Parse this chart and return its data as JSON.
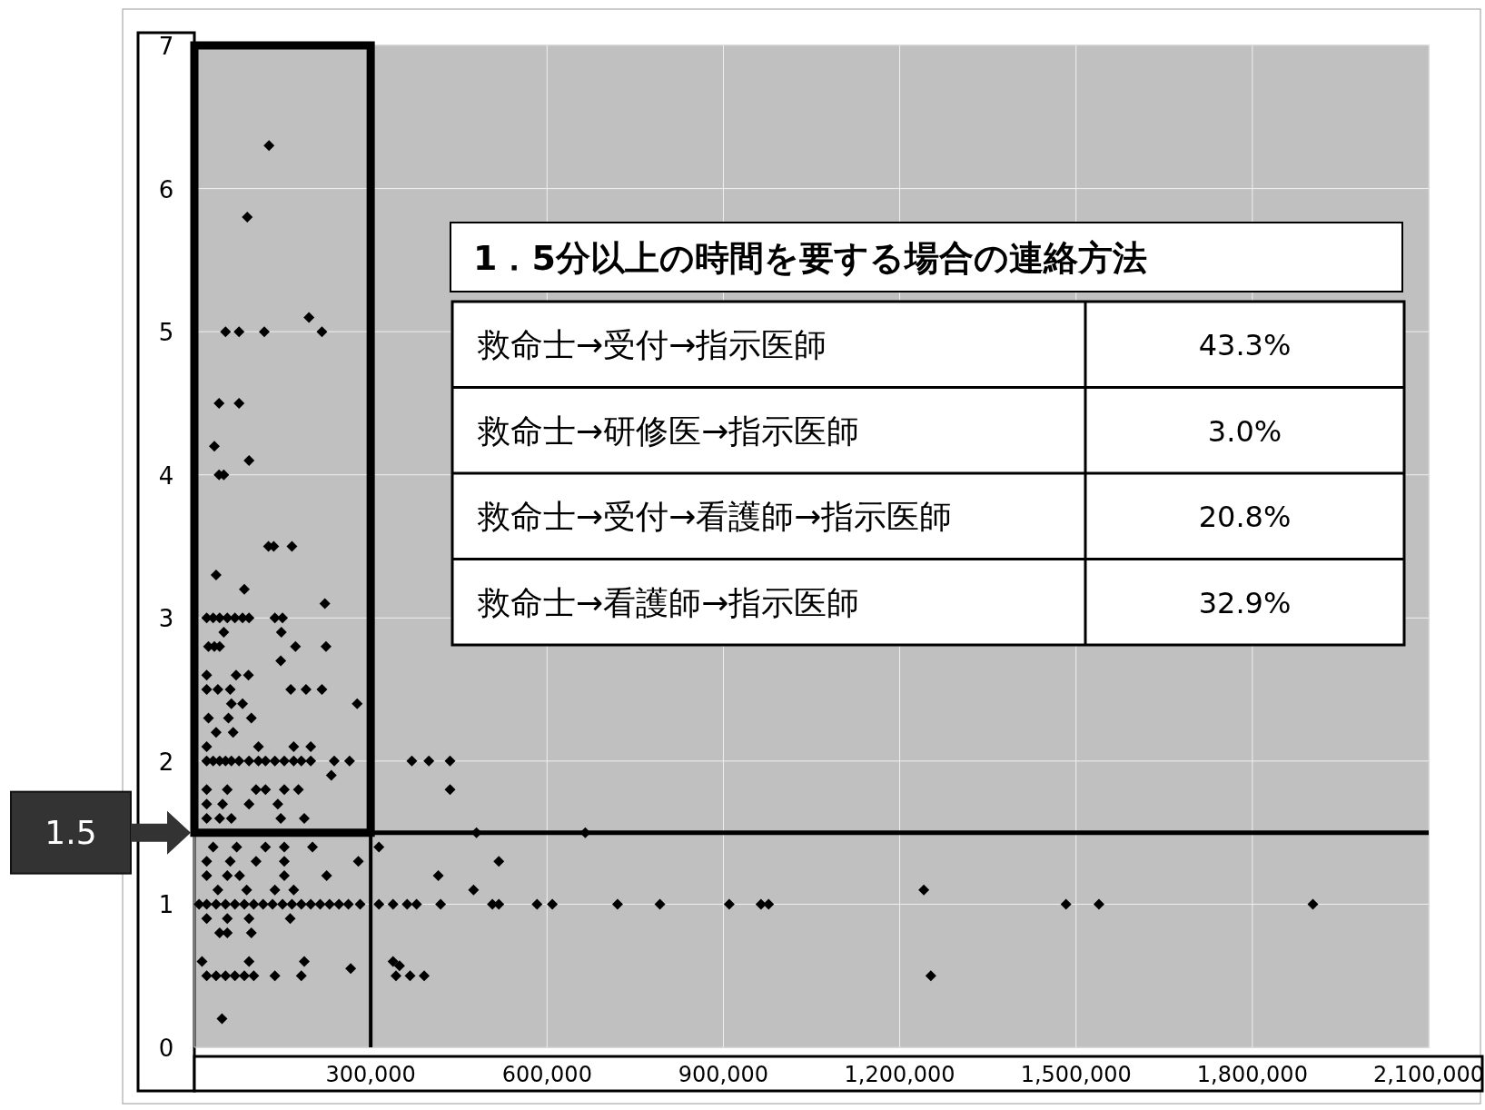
{
  "chart_data": [
    {
      "type": "scatter",
      "marker": "diamond",
      "grid": true,
      "xlim": [
        0,
        2100000
      ],
      "xticks": [
        {
          "value": 0,
          "label": null
        },
        {
          "value": 300000,
          "label": "300,000"
        },
        {
          "value": 600000,
          "label": "600,000"
        },
        {
          "value": 900000,
          "label": "900,000"
        },
        {
          "value": 1200000,
          "label": "1,200,000"
        },
        {
          "value": 1500000,
          "label": "1,500,000"
        },
        {
          "value": 1800000,
          "label": "1,800,000"
        },
        {
          "value": 2100000,
          "label": "2,100,000"
        }
      ],
      "ylim": [
        0,
        7
      ],
      "yticks": [
        0,
        1,
        2,
        3,
        4,
        5,
        6,
        7
      ],
      "ref_lines": [
        {
          "axis": "y",
          "value": 1.5,
          "label": "1.5",
          "color": "#000000"
        }
      ],
      "series": [
        {
          "color": "#000000",
          "x": [
            127000,
            90000,
            195000,
            53000,
            76000,
            119000,
            217000,
            42000,
            76000,
            34000,
            93000,
            42000,
            50000,
            126000,
            135000,
            166000,
            37000,
            85000,
            222000,
            21000,
            32000,
            43000,
            56000,
            69000,
            82000,
            93000,
            137000,
            150000,
            50000,
            148000,
            24000,
            34000,
            43000,
            172000,
            224000,
            147000,
            21000,
            71000,
            92000,
            21000,
            40000,
            61000,
            164000,
            190000,
            217000,
            63000,
            82000,
            277000,
            24000,
            58000,
            97000,
            37000,
            66000,
            21000,
            109000,
            169000,
            198000,
            21000,
            32000,
            43000,
            53000,
            63000,
            76000,
            93000,
            109000,
            121000,
            137000,
            153000,
            169000,
            182000,
            198000,
            238000,
            264000,
            370000,
            399000,
            435000,
            233000,
            21000,
            56000,
            105000,
            121000,
            153000,
            177000,
            435000,
            21000,
            48000,
            93000,
            142000,
            21000,
            43000,
            63000,
            147000,
            187000,
            480000,
            665000,
            32000,
            72000,
            121000,
            153000,
            201000,
            314000,
            21000,
            61000,
            105000,
            153000,
            279000,
            518000,
            21000,
            56000,
            77000,
            153000,
            225000,
            415000,
            40000,
            89000,
            137000,
            169000,
            475000,
            1241000,
            8000,
            21000,
            37000,
            53000,
            69000,
            85000,
            101000,
            117000,
            133000,
            150000,
            166000,
            182000,
            198000,
            214000,
            230000,
            246000,
            262000,
            282000,
            314000,
            338000,
            362000,
            378000,
            419000,
            507000,
            518000,
            583000,
            609000,
            720000,
            792000,
            910000,
            964000,
            977000,
            1483000,
            1539000,
            1903000,
            21000,
            56000,
            93000,
            163000,
            43000,
            56000,
            97000,
            13000,
            93000,
            187000,
            338000,
            349000,
            266000,
            21000,
            37000,
            53000,
            69000,
            85000,
            101000,
            137000,
            182000,
            343000,
            367000,
            391000,
            1253000,
            47000
          ],
          "values": [
            6.3,
            5.8,
            5.1,
            5.0,
            5.0,
            5.0,
            5.0,
            4.5,
            4.5,
            4.2,
            4.1,
            4.0,
            4.0,
            3.5,
            3.5,
            3.5,
            3.3,
            3.2,
            3.1,
            3.0,
            3.0,
            3.0,
            3.0,
            3.0,
            3.0,
            3.0,
            3.0,
            3.0,
            2.9,
            2.9,
            2.8,
            2.8,
            2.8,
            2.8,
            2.8,
            2.7,
            2.6,
            2.6,
            2.6,
            2.5,
            2.5,
            2.5,
            2.5,
            2.5,
            2.5,
            2.4,
            2.4,
            2.4,
            2.3,
            2.3,
            2.3,
            2.2,
            2.2,
            2.1,
            2.1,
            2.1,
            2.1,
            2.0,
            2.0,
            2.0,
            2.0,
            2.0,
            2.0,
            2.0,
            2.0,
            2.0,
            2.0,
            2.0,
            2.0,
            2.0,
            2.0,
            2.0,
            2.0,
            2.0,
            2.0,
            2.0,
            1.9,
            1.8,
            1.8,
            1.8,
            1.8,
            1.8,
            1.8,
            1.8,
            1.7,
            1.7,
            1.7,
            1.7,
            1.6,
            1.6,
            1.6,
            1.6,
            1.6,
            1.5,
            1.5,
            1.4,
            1.4,
            1.4,
            1.4,
            1.4,
            1.4,
            1.3,
            1.3,
            1.3,
            1.3,
            1.3,
            1.3,
            1.2,
            1.2,
            1.2,
            1.2,
            1.2,
            1.2,
            1.1,
            1.1,
            1.1,
            1.1,
            1.1,
            1.1,
            1.0,
            1.0,
            1.0,
            1.0,
            1.0,
            1.0,
            1.0,
            1.0,
            1.0,
            1.0,
            1.0,
            1.0,
            1.0,
            1.0,
            1.0,
            1.0,
            1.0,
            1.0,
            1.0,
            1.0,
            1.0,
            1.0,
            1.0,
            1.0,
            1.0,
            1.0,
            1.0,
            1.0,
            1.0,
            1.0,
            1.0,
            1.0,
            1.0,
            1.0,
            1.0,
            0.9,
            0.9,
            0.9,
            0.9,
            0.8,
            0.8,
            0.8,
            0.6,
            0.6,
            0.6,
            0.6,
            0.57,
            0.55,
            0.5,
            0.5,
            0.5,
            0.5,
            0.5,
            0.5,
            0.5,
            0.5,
            0.5,
            0.5,
            0.5,
            0.5,
            0.2
          ]
        }
      ]
    },
    {
      "type": "other",
      "title": "1．5分以上の時間を要する場合の連絡方法",
      "categories": [
        "救命士→受付→指示医師",
        "救命士→研修医→指示医師",
        "救命士→受付→看護師→指示医師",
        "救命士→看護師→指示医師"
      ],
      "value_labels": [
        "43.3%",
        "3.0%",
        "20.8%",
        "32.9%"
      ]
    }
  ]
}
